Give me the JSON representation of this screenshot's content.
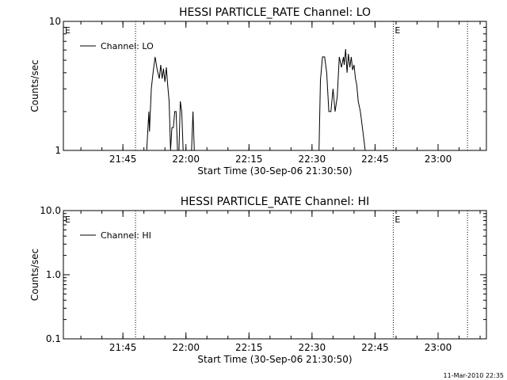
{
  "chart_data": [
    {
      "type": "line",
      "title": "HESSI PARTICLE_RATE Channel: LO",
      "xlabel": "Start Time (30-Sep-06 21:30:50)",
      "ylabel": "Counts/sec",
      "y_scale": "log",
      "ylim": [
        1,
        10
      ],
      "xlim": [
        "21:30:50",
        "23:11:30"
      ],
      "x_ticks": [
        "21:45",
        "22:00",
        "22:15",
        "22:30",
        "22:45",
        "23:00"
      ],
      "y_ticks": [
        {
          "value": 1,
          "label": "1"
        },
        {
          "value": 10,
          "label": "10"
        }
      ],
      "legend": {
        "position": "top-left",
        "entries": [
          "Channel: LO"
        ]
      },
      "markers": [
        {
          "time": "21:30:50",
          "label": "E",
          "line": false
        },
        {
          "time": "21:48:00",
          "label": "",
          "line": true
        },
        {
          "time": "22:49:20",
          "label": "E",
          "line": true
        },
        {
          "time": "23:07:00",
          "label": "",
          "line": true
        }
      ],
      "series": [
        {
          "name": "Channel: LO",
          "segments": [
            {
              "x": [
                "21:50:40",
                "21:51:10",
                "21:51:20",
                "21:51:45",
                "21:52:10",
                "21:52:40",
                "21:53:10",
                "21:53:40",
                "21:54:00",
                "21:54:20",
                "21:54:40",
                "21:55:00",
                "21:55:20",
                "21:55:40",
                "21:56:00",
                "21:56:20",
                "21:56:40",
                "21:57:00",
                "21:57:20",
                "21:57:40",
                "21:58:00",
                "21:58:20",
                "21:58:40",
                "21:59:00",
                "21:59:20"
              ],
              "y": [
                1,
                2.0,
                1.4,
                3.0,
                4.0,
                5.3,
                4.2,
                3.6,
                4.6,
                3.6,
                4.3,
                3.4,
                4.4,
                3.2,
                2.4,
                1.0,
                1.5,
                1.5,
                2.0,
                2.0,
                1.0,
                1.0,
                2.4,
                2.0,
                1.0
              ]
            },
            {
              "x": [
                "22:01:20",
                "22:01:40",
                "22:02:00"
              ],
              "y": [
                1,
                2.0,
                1
              ]
            },
            {
              "x": [
                "22:31:40",
                "22:32:00",
                "22:32:30",
                "22:33:00",
                "22:33:30",
                "22:34:00",
                "22:34:30",
                "22:35:00",
                "22:35:30",
                "22:36:00",
                "22:36:30",
                "22:37:00",
                "22:37:30",
                "22:37:40",
                "22:38:00",
                "22:38:20",
                "22:38:40",
                "22:39:00",
                "22:39:20",
                "22:39:40",
                "22:40:00",
                "22:40:20",
                "22:40:40",
                "22:41:00",
                "22:41:30",
                "22:42:00",
                "22:42:40"
              ],
              "y": [
                1,
                3.5,
                5.3,
                5.3,
                4.0,
                2.0,
                2.0,
                3.0,
                2.0,
                2.6,
                5.3,
                4.4,
                5.3,
                4.6,
                6.1,
                4.0,
                5.6,
                4.4,
                5.3,
                4.2,
                4.6,
                3.6,
                3.2,
                2.4,
                2.0,
                1.5,
                1
              ]
            }
          ]
        }
      ]
    },
    {
      "type": "line",
      "title": "HESSI PARTICLE_RATE Channel: HI",
      "xlabel": "Start Time (30-Sep-06 21:30:50)",
      "ylabel": "Counts/sec",
      "y_scale": "log",
      "ylim": [
        0.1,
        10
      ],
      "xlim": [
        "21:30:50",
        "23:11:30"
      ],
      "x_ticks": [
        "21:45",
        "22:00",
        "22:15",
        "22:30",
        "22:45",
        "23:00"
      ],
      "y_ticks": [
        {
          "value": 0.1,
          "label": "0.1"
        },
        {
          "value": 1,
          "label": "1.0"
        },
        {
          "value": 10,
          "label": "10.0"
        }
      ],
      "legend": {
        "position": "top-left",
        "entries": [
          "Channel: HI"
        ]
      },
      "markers": [
        {
          "time": "21:30:50",
          "label": "E",
          "line": false
        },
        {
          "time": "21:48:00",
          "label": "",
          "line": true
        },
        {
          "time": "22:49:20",
          "label": "E",
          "line": true
        },
        {
          "time": "23:07:00",
          "label": "",
          "line": true
        }
      ],
      "series": [
        {
          "name": "Channel: HI",
          "segments": []
        }
      ]
    }
  ],
  "footer": {
    "timestamp": "11-Mar-2010 22:35"
  }
}
